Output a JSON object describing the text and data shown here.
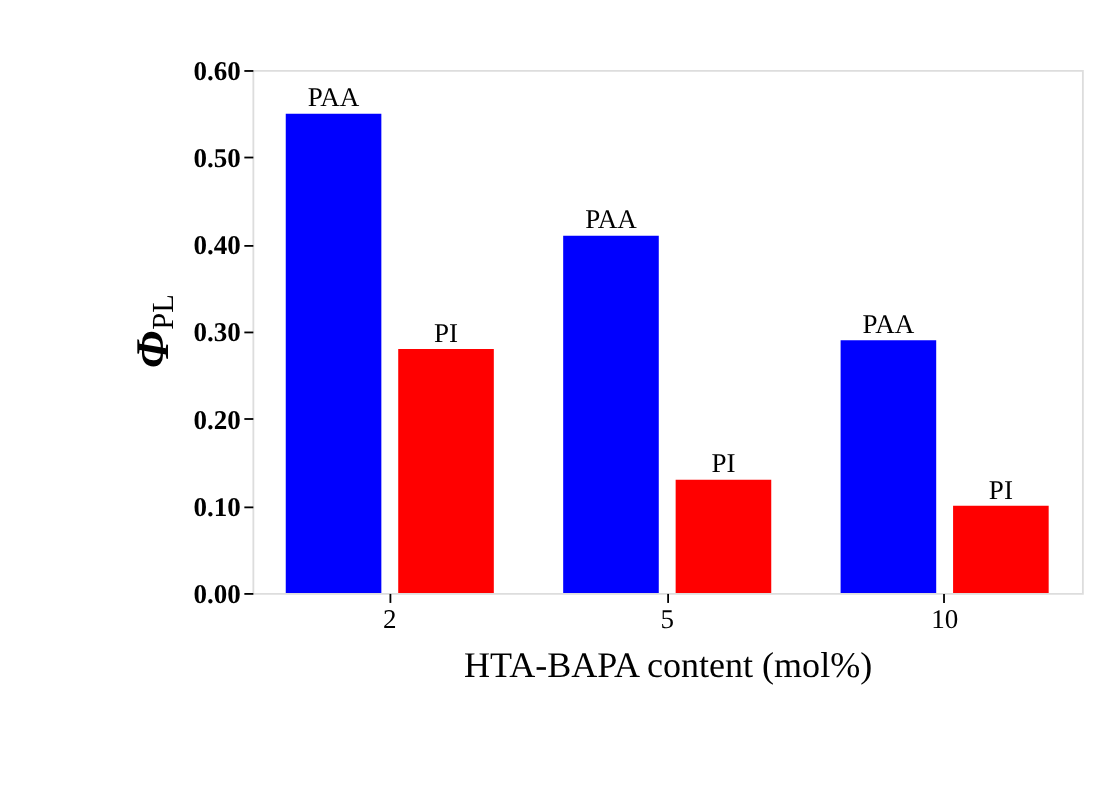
{
  "chart_data": {
    "type": "bar",
    "xlabel": "HTA-BAPA content (mol%)",
    "ylabel": "Φ$_{PL}$",
    "categories": [
      "2",
      "5",
      "10"
    ],
    "series": [
      {
        "name": "PAA",
        "color": "#0000ff",
        "values": [
          0.55,
          0.41,
          0.29
        ]
      },
      {
        "name": "PI",
        "color": "#ff0000",
        "values": [
          0.28,
          0.13,
          0.1
        ]
      }
    ],
    "ylim": [
      0,
      0.6
    ],
    "yticks": [
      {
        "value": 0,
        "label": "0.00"
      },
      {
        "value": 0.1,
        "label": "0.10"
      },
      {
        "value": 0.2,
        "label": "0.20"
      },
      {
        "value": 0.3,
        "label": "0.30"
      },
      {
        "value": 0.4,
        "label": "0.40"
      },
      {
        "value": 0.5,
        "label": "0.50"
      },
      {
        "value": 0.6,
        "label": "0.60"
      }
    ],
    "grid": false,
    "legend": false
  }
}
